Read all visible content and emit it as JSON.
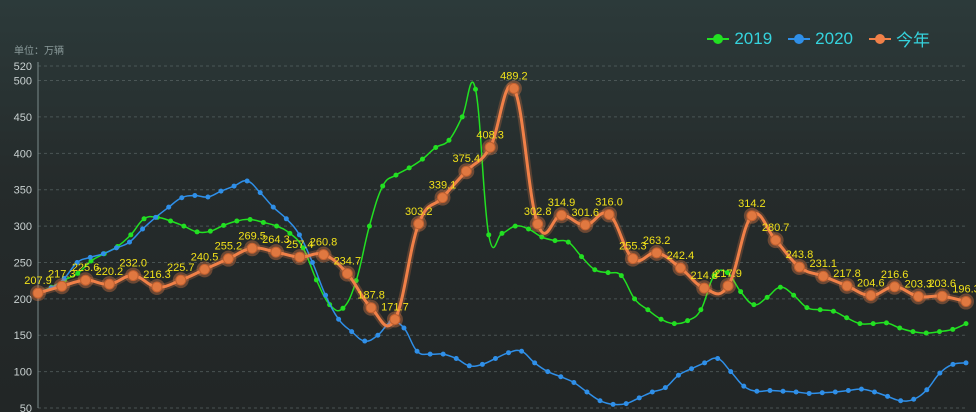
{
  "chart_data": {
    "type": "line",
    "unit_label": "单位：万辆",
    "ylim": [
      50,
      520
    ],
    "yticks": [
      50,
      100,
      150,
      200,
      250,
      300,
      350,
      400,
      450,
      500,
      520
    ],
    "grid": true,
    "legend_position": "top-right",
    "n_points": 54,
    "series": [
      {
        "name": "2019",
        "color": "#22e022",
        "values": [
          208,
          216,
          226,
          235,
          252,
          262,
          272,
          288,
          310,
          312,
          307,
          300,
          292,
          293,
          301,
          307,
          309,
          305,
          300,
          290,
          270,
          226,
          192,
          187,
          225,
          300,
          355,
          370,
          380,
          392,
          408,
          418,
          450,
          488,
          288,
          290,
          300,
          296,
          285,
          280,
          278,
          258,
          240,
          236,
          232,
          200,
          185,
          172,
          166,
          170,
          185,
          232,
          236,
          210,
          192,
          202,
          216,
          205,
          188,
          185,
          183,
          174,
          166,
          166,
          167,
          160,
          155,
          153,
          155,
          158,
          166
        ],
        "values_len": 71
      },
      {
        "name": "2020",
        "color": "#2f8fe8",
        "values": [
          210,
          215,
          228,
          250,
          257,
          262,
          270,
          278,
          296,
          312,
          326,
          339,
          342,
          340,
          348,
          355,
          362,
          346,
          326,
          310,
          288,
          250,
          205,
          172,
          155,
          142,
          150,
          168,
          160,
          128,
          124,
          124,
          118,
          108,
          110,
          118,
          126,
          128,
          112,
          100,
          93,
          85,
          72,
          60,
          55,
          56,
          64,
          72,
          78,
          95,
          104,
          112,
          118,
          100,
          80,
          73,
          74,
          73,
          72,
          70,
          71,
          72,
          74,
          76,
          72,
          66,
          60,
          62,
          75,
          98,
          110,
          112
        ]
      },
      {
        "name": "今年",
        "color": "#f08048",
        "values": [
          207.9,
          217.3,
          225.6,
          220.2,
          232.0,
          216.3,
          225.7,
          240.5,
          255.2,
          269.5,
          264.3,
          257.4,
          260.8,
          234.7,
          187.8,
          171.7,
          303.2,
          339.1,
          375.4,
          408.3,
          489.2,
          302.8,
          314.9,
          301.6,
          316.0,
          255.3,
          263.2,
          242.4,
          214.8,
          217.9,
          314.2,
          280.7,
          243.8,
          231.1,
          217.8,
          204.6,
          216.6,
          203.3,
          203.6,
          196.3
        ],
        "labels": [
          "207.9",
          "217.3",
          "225.6",
          "220.2",
          "232.0",
          "216.3",
          "225.7",
          "240.5",
          "255.2",
          "269.5",
          "264.3",
          "257.4",
          "260.8",
          "234.7",
          "187.8",
          "171.7",
          "303.2",
          "339.1",
          "375.4",
          "408.3",
          "489.2",
          "302.8",
          "314.9",
          "301.6",
          "316.0",
          "255.3",
          "263.2",
          "242.4",
          "214.8",
          "217.9",
          "314.2",
          "280.7",
          "243.8",
          "231.1",
          "217.8",
          "204.6",
          "216.6",
          "203.3",
          "203.6",
          "196.3"
        ]
      }
    ]
  }
}
